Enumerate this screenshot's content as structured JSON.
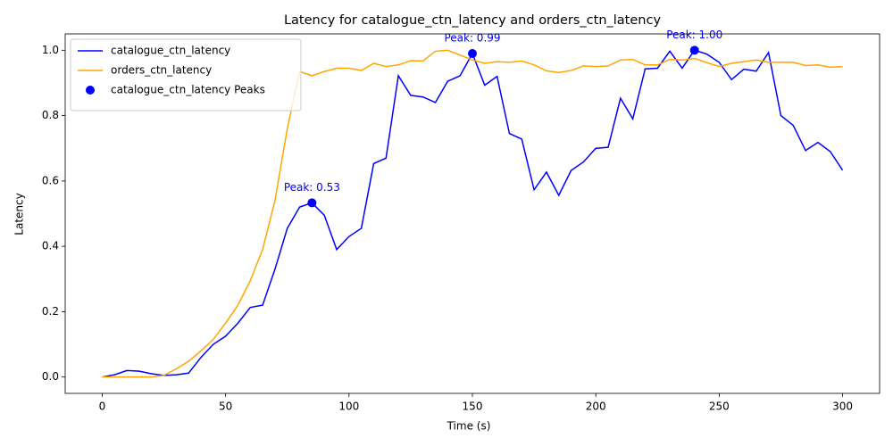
{
  "chart_data": {
    "type": "line",
    "title": "Latency for catalogue_ctn_latency and orders_ctn_latency",
    "xlabel": "Time (s)",
    "ylabel": "Latency",
    "x": [
      0,
      5,
      10,
      15,
      20,
      25,
      30,
      35,
      40,
      45,
      50,
      55,
      60,
      65,
      70,
      75,
      80,
      85,
      90,
      95,
      100,
      105,
      110,
      115,
      120,
      125,
      130,
      135,
      140,
      145,
      150,
      155,
      160,
      165,
      170,
      175,
      180,
      185,
      190,
      195,
      200,
      205,
      210,
      215,
      220,
      225,
      230,
      235,
      240,
      245,
      250,
      255,
      260,
      265,
      270,
      275,
      280,
      285,
      290,
      295,
      300
    ],
    "series": [
      {
        "name": "catalogue_ctn_latency",
        "color": "blue",
        "values": [
          0.0,
          0.007,
          0.02,
          0.018,
          0.01,
          0.005,
          0.007,
          0.012,
          0.06,
          0.1,
          0.125,
          0.165,
          0.213,
          0.22,
          0.33,
          0.455,
          0.52,
          0.533,
          0.495,
          0.39,
          0.43,
          0.455,
          0.653,
          0.67,
          0.922,
          0.862,
          0.857,
          0.84,
          0.905,
          0.922,
          0.99,
          0.893,
          0.92,
          0.745,
          0.728,
          0.573,
          0.627,
          0.556,
          0.632,
          0.658,
          0.7,
          0.703,
          0.853,
          0.79,
          0.943,
          0.945,
          0.997,
          0.945,
          1.0,
          0.988,
          0.963,
          0.91,
          0.942,
          0.936,
          0.993,
          0.8,
          0.77,
          0.693,
          0.718,
          0.69,
          0.633
        ]
      },
      {
        "name": "orders_ctn_latency",
        "color": "orange",
        "values": [
          0,
          0,
          0,
          0,
          0,
          0.005,
          0.025,
          0.048,
          0.08,
          0.115,
          0.165,
          0.22,
          0.295,
          0.39,
          0.54,
          0.76,
          0.935,
          0.922,
          0.935,
          0.945,
          0.945,
          0.938,
          0.96,
          0.95,
          0.955,
          0.968,
          0.967,
          0.997,
          1.0,
          0.985,
          0.97,
          0.96,
          0.965,
          0.963,
          0.967,
          0.955,
          0.937,
          0.932,
          0.938,
          0.952,
          0.95,
          0.952,
          0.97,
          0.972,
          0.955,
          0.955,
          0.972,
          0.97,
          0.975,
          0.962,
          0.95,
          0.96,
          0.965,
          0.97,
          0.963,
          0.963,
          0.963,
          0.953,
          0.955,
          0.948,
          0.95
        ]
      },
      {
        "name": "catalogue_ctn_latency Peaks",
        "type": "scatter",
        "color": "blue",
        "x": [
          85,
          150,
          240
        ],
        "values": [
          0.533,
          0.99,
          1.0
        ],
        "value_labels": [
          "Peak: 0.53",
          "Peak: 0.99",
          "Peak: 1.00"
        ]
      }
    ],
    "xlim": [
      -15,
      315
    ],
    "ylim": [
      -0.05,
      1.05
    ],
    "xticks": [
      0,
      50,
      100,
      150,
      200,
      250,
      300
    ],
    "yticks": [
      {
        "value": 0,
        "label": "0.0"
      },
      {
        "value": 0.2,
        "label": "0.2"
      },
      {
        "value": 0.4,
        "label": "0.4"
      },
      {
        "value": 0.6,
        "label": "0.6"
      },
      {
        "value": 0.8,
        "label": "0.8"
      },
      {
        "value": 1.0,
        "label": "1.0"
      }
    ],
    "legend": "upper left",
    "grid": false
  }
}
